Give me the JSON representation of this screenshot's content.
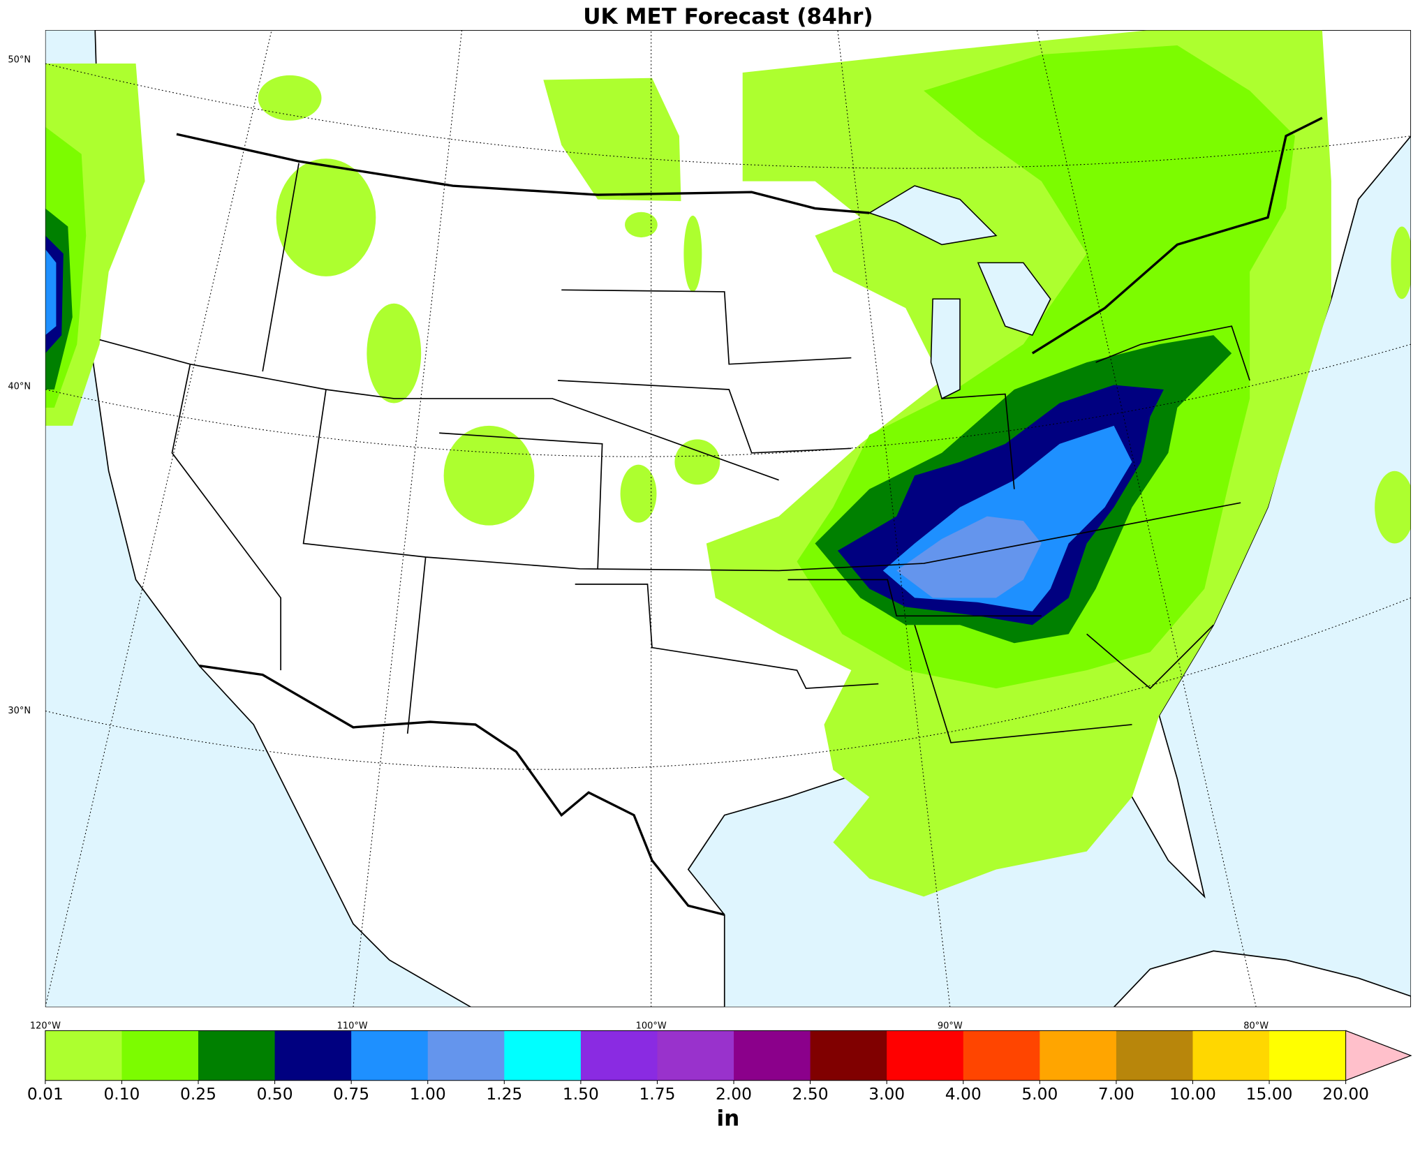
{
  "title": "UK MET Forecast (84hr)",
  "map": {
    "lat_labels": [
      "50°N",
      "40°N",
      "30°N"
    ],
    "lon_labels": [
      "120°W",
      "110°W",
      "100°W",
      "90°W",
      "80°W"
    ]
  },
  "colorbar": {
    "levels": [
      0.01,
      {
        "value": 0.1,
        "label": "0.10"
      },
      0.25,
      {
        "value": 0.5,
        "label": "0.50"
      },
      0.75,
      {
        "value": 1,
        "label": "1.00"
      },
      1.25,
      {
        "value": 1.5,
        "label": "1.50"
      },
      1.75,
      {
        "value": 2,
        "label": "2.00"
      },
      {
        "value": 2.5,
        "label": "2.50"
      },
      {
        "value": 3,
        "label": "3.00"
      },
      {
        "value": 4,
        "label": "4.00"
      },
      {
        "value": 5,
        "label": "5.00"
      },
      {
        "value": 7,
        "label": "7.00"
      },
      {
        "value": 10,
        "label": "10.00"
      },
      {
        "value": 15,
        "label": "15.00"
      },
      {
        "value": 20,
        "label": "20.00"
      }
    ],
    "colors": [
      "#adff2f",
      "#7cfc00",
      "#008000",
      "#000080",
      "#1e90ff",
      "#6495ed",
      "#00ffff",
      "#8a2be2",
      "#9932cc",
      "#8b008b",
      "#800000",
      "#ff0000",
      "#ff4500",
      "#ffa500",
      "#b8860b",
      "#ffd700",
      "#ffff00"
    ],
    "extend_color": "#ffc0cb",
    "unit": "in"
  }
}
